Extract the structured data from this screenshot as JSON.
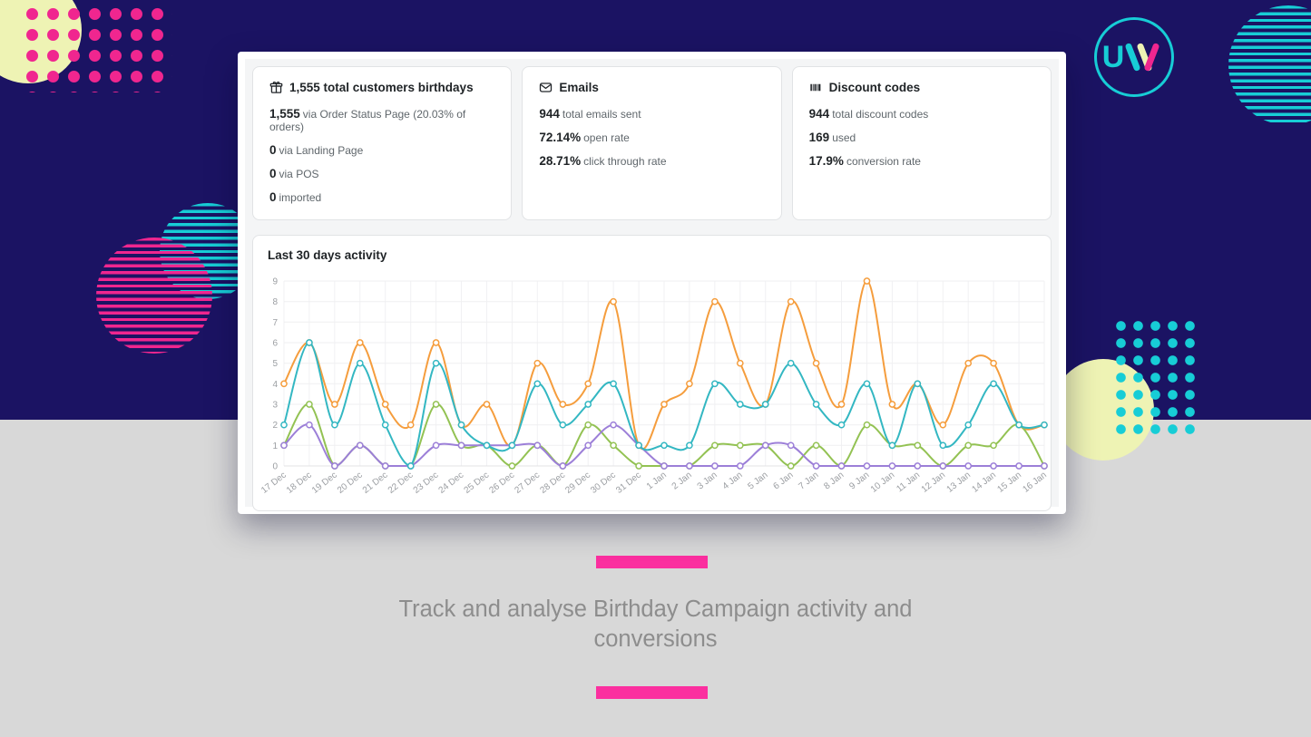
{
  "page": {
    "bg_navy": "#1b1363",
    "bg_gray": "#d8d8d8",
    "accent_pink": "#fb2f9f",
    "accent_cyan": "#17cdd6",
    "accent_yellow": "#eef3b4"
  },
  "logo": {
    "letter_u": "U"
  },
  "cards": [
    {
      "icon": "gift-icon",
      "title": "1,555 total customers birthdays",
      "rows": [
        {
          "value": "1,555",
          "label": "via Order Status Page (20.03% of orders)"
        },
        {
          "value": "0",
          "label": "via Landing Page"
        },
        {
          "value": "0",
          "label": "via POS"
        },
        {
          "value": "0",
          "label": "imported"
        }
      ]
    },
    {
      "icon": "email-icon",
      "title": "Emails",
      "rows": [
        {
          "value": "944",
          "label": "total emails sent"
        },
        {
          "value": "72.14%",
          "label": "open rate"
        },
        {
          "value": "28.71%",
          "label": "click through rate"
        }
      ]
    },
    {
      "icon": "barcode-icon",
      "title": "Discount codes",
      "rows": [
        {
          "value": "944",
          "label": "total discount codes"
        },
        {
          "value": "169",
          "label": "used"
        },
        {
          "value": "17.9%",
          "label": "conversion rate"
        }
      ]
    }
  ],
  "chart_data": {
    "type": "line",
    "title": "Last 30 days activity",
    "categories": [
      "17 Dec",
      "18 Dec",
      "19 Dec",
      "20 Dec",
      "21 Dec",
      "22 Dec",
      "23 Dec",
      "24 Dec",
      "25 Dec",
      "26 Dec",
      "27 Dec",
      "28 Dec",
      "29 Dec",
      "30 Dec",
      "31 Dec",
      "1 Jan",
      "2 Jan",
      "3 Jan",
      "4 Jan",
      "5 Jan",
      "6 Jan",
      "7 Jan",
      "8 Jan",
      "9 Jan",
      "10 Jan",
      "11 Jan",
      "12 Jan",
      "13 Jan",
      "14 Jan",
      "15 Jan",
      "16 Jan"
    ],
    "series": [
      {
        "name": "orange",
        "color": "#f59d3d",
        "values": [
          4,
          6,
          3,
          6,
          3,
          2,
          6,
          2,
          3,
          1,
          5,
          3,
          4,
          8,
          1,
          3,
          4,
          8,
          5,
          3,
          8,
          5,
          3,
          9,
          3,
          4,
          2,
          5,
          5,
          2,
          2
        ]
      },
      {
        "name": "green",
        "color": "#93c253",
        "values": [
          1,
          3,
          0,
          1,
          0,
          0,
          3,
          1,
          1,
          0,
          1,
          0,
          2,
          1,
          0,
          0,
          0,
          1,
          1,
          1,
          0,
          1,
          0,
          2,
          1,
          1,
          0,
          1,
          1,
          2,
          0
        ]
      },
      {
        "name": "purple",
        "color": "#9c7fd8",
        "values": [
          1,
          2,
          0,
          1,
          0,
          0,
          1,
          1,
          1,
          1,
          1,
          0,
          1,
          2,
          1,
          0,
          0,
          0,
          0,
          1,
          1,
          0,
          0,
          0,
          0,
          0,
          0,
          0,
          0,
          0,
          0
        ]
      },
      {
        "name": "teal",
        "color": "#33b7c2",
        "values": [
          2,
          6,
          2,
          5,
          2,
          0,
          5,
          2,
          1,
          1,
          4,
          2,
          3,
          4,
          1,
          1,
          1,
          4,
          3,
          3,
          5,
          3,
          2,
          4,
          1,
          4,
          1,
          2,
          4,
          2,
          2
        ]
      }
    ],
    "ylim": [
      0,
      9
    ],
    "yticks": [
      0,
      1,
      2,
      3,
      4,
      5,
      6,
      7,
      8,
      9
    ],
    "grid": true,
    "legend": "none",
    "marker": "circle"
  },
  "tagline": "Track and analyse Birthday Campaign activity and conversions"
}
